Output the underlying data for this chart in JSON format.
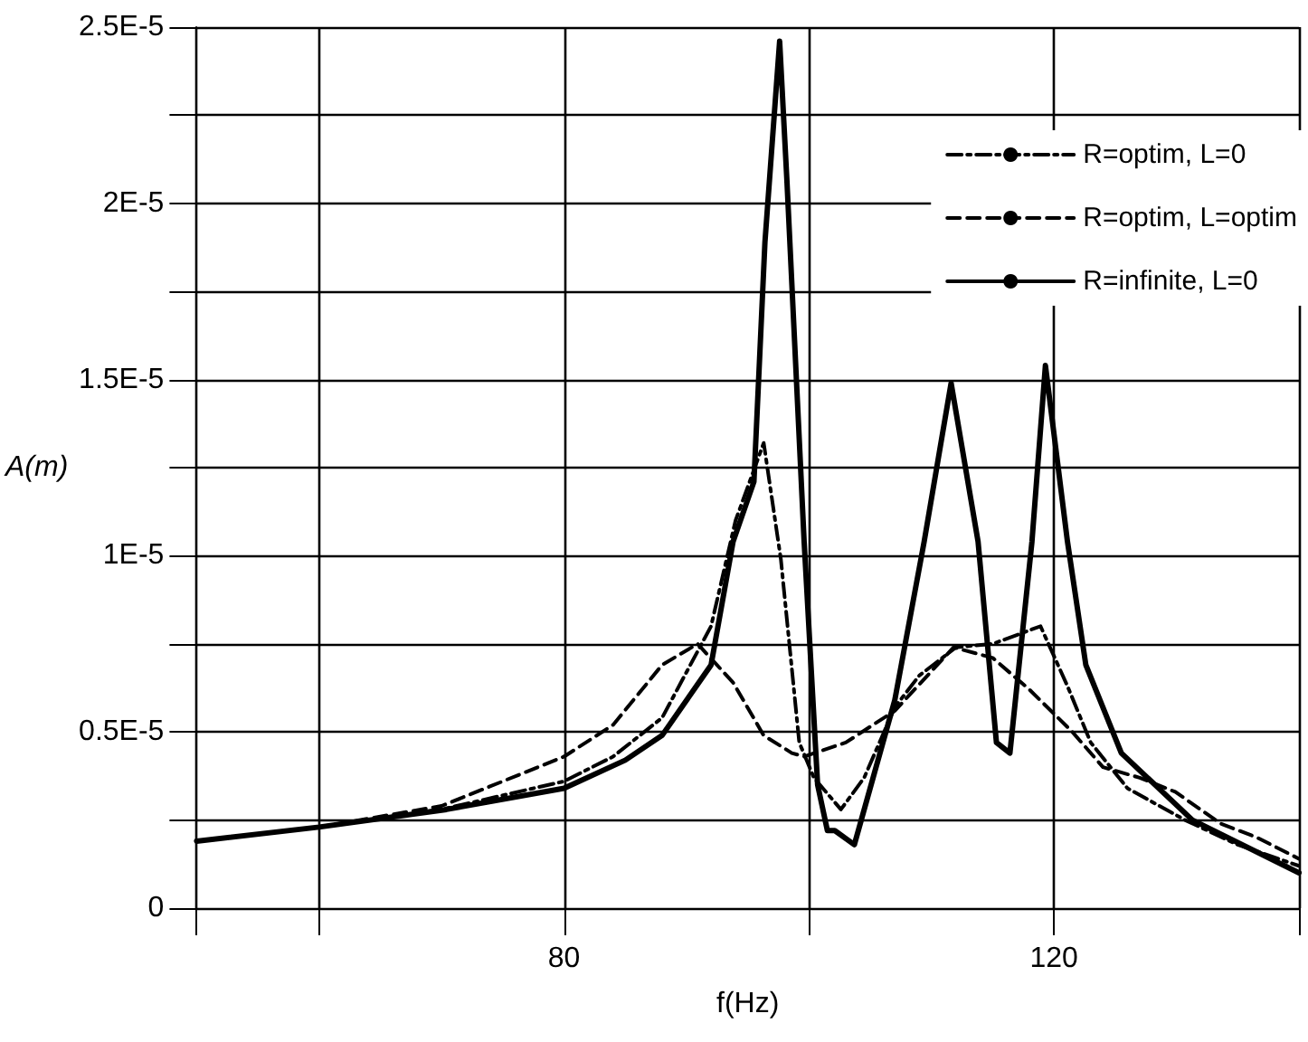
{
  "chart_data": {
    "type": "line",
    "xlabel": "f(Hz)",
    "ylabel": "A(m)",
    "xlim": [
      50,
      140
    ],
    "xticks": [
      {
        "value": 50,
        "label": null
      },
      {
        "value": 60,
        "label": null
      },
      80,
      {
        "value": 100,
        "label": null
      },
      120,
      {
        "value": 140,
        "label": null
      }
    ],
    "ylim": [
      0,
      2.5e-05
    ],
    "yticks": [
      {
        "value": 0,
        "label": "0"
      },
      {
        "value": 2.5e-06,
        "label": null
      },
      {
        "value": 5e-06,
        "label": "0.5E-5"
      },
      {
        "value": 7.5e-06,
        "label": null
      },
      {
        "value": 1e-05,
        "label": "1E-5"
      },
      {
        "value": 1.25e-05,
        "label": null
      },
      {
        "value": 1.5e-05,
        "label": "1.5E-5"
      },
      {
        "value": 1.75e-05,
        "label": null
      },
      {
        "value": 2e-05,
        "label": "2E-5"
      },
      {
        "value": 2.25e-05,
        "label": null
      },
      {
        "value": 2.5e-05,
        "label": "2.5E-5"
      }
    ],
    "grid": true,
    "legend": "top right",
    "marker": "none",
    "series": [
      {
        "name": "R=optim, L=0",
        "color": "#000000",
        "line_style": "dashdot",
        "x": [
          50,
          60,
          70,
          80,
          84,
          88,
          92,
          94,
          96.3,
          97.7,
          99.2,
          100.4,
          102.6,
          104.5,
          107,
          109,
          112,
          115,
          118.9,
          121.1,
          123,
          126,
          130.7,
          135,
          140
        ],
        "values": [
          1.9e-06,
          2.3e-06,
          2.8e-06,
          3.6e-06,
          4.3e-06,
          5.4e-06,
          8e-06,
          1.1e-05,
          1.32e-05,
          9.9e-06,
          4.7e-06,
          3.7e-06,
          2.8e-06,
          3.7e-06,
          5.7e-06,
          6.6e-06,
          7.4e-06,
          7.5e-06,
          8e-06,
          6.3e-06,
          4.7e-06,
          3.4e-06,
          2.5e-06,
          1.8e-06,
          1.2e-06
        ]
      },
      {
        "name": "R=optim, L=optim",
        "color": "#000000",
        "line_style": "dashed",
        "x": [
          50,
          60,
          70,
          80,
          84,
          88,
          90.9,
          93.8,
          96.3,
          98.6,
          99.6,
          103,
          107,
          111.8,
          115,
          118,
          121.5,
          124,
          127,
          129.9,
          133.6,
          136.6,
          140
        ],
        "values": [
          1.9e-06,
          2.3e-06,
          2.9e-06,
          4.3e-06,
          5.2e-06,
          6.9e-06,
          7.5e-06,
          6.4e-06,
          4.9e-06,
          4.4e-06,
          4.3e-06,
          4.7e-06,
          5.6e-06,
          7.4e-06,
          7.1e-06,
          6.2e-06,
          5e-06,
          4e-06,
          3.7e-06,
          3.3e-06,
          2.4e-06,
          2e-06,
          1.4e-06
        ]
      },
      {
        "name": "R=infinite, L=0",
        "color": "#000000",
        "line_style": "solid",
        "x": [
          50,
          60,
          70.4,
          80,
          85,
          88,
          92,
          93.8,
          95.5,
          96.4,
          97.6,
          98.2,
          99.6,
          100.7,
          101.5,
          102.1,
          103.7,
          107,
          109.4,
          111.6,
          113.8,
          115.3,
          116.4,
          118.2,
          119.3,
          121.1,
          122.6,
          125.5,
          131.3,
          140
        ],
        "values": [
          1.9e-06,
          2.3e-06,
          2.8e-06,
          3.4e-06,
          4.2e-06,
          4.9e-06,
          6.9e-06,
          1.04e-05,
          1.21e-05,
          1.89e-05,
          2.46e-05,
          2.06e-05,
          1.04e-05,
          3.5e-06,
          2.2e-06,
          2.2e-06,
          1.8e-06,
          5.9e-06,
          1.04e-05,
          1.49e-05,
          1.04e-05,
          4.7e-06,
          4.4e-06,
          1.04e-05,
          1.54e-05,
          1.04e-05,
          6.9e-06,
          4.4e-06,
          2.5e-06,
          1e-06
        ]
      }
    ]
  }
}
